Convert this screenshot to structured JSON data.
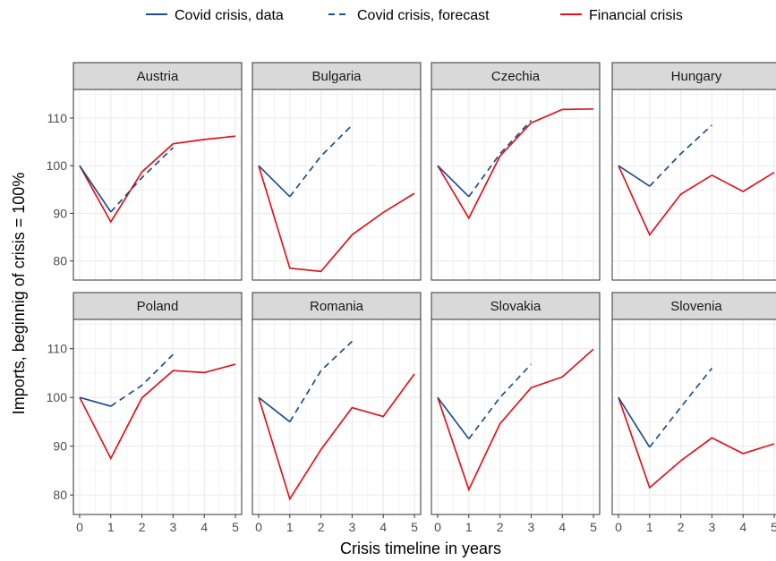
{
  "chart_data": {
    "type": "line",
    "facet_by": "country",
    "xlabel": "Crisis timeline in years",
    "ylabel": "Imports, beginnig of crisis = 100%",
    "x_ticks": [
      0,
      1,
      2,
      3,
      4,
      5
    ],
    "y_ticks": [
      80,
      90,
      100,
      110
    ],
    "xlim": [
      -0.2,
      5.2
    ],
    "ylim": [
      76,
      116
    ],
    "grid": true,
    "legend_position": "top",
    "legend": [
      {
        "label": "Covid crisis, data",
        "color": "#1f4e8c",
        "dash": "solid"
      },
      {
        "label": "Covid crisis, forecast",
        "color": "#1f4e8c",
        "dash": "dashed"
      },
      {
        "label": "Financial crisis",
        "color": "#e0141b",
        "dash": "solid"
      }
    ],
    "panels": [
      {
        "country": "Austria",
        "covid_data": {
          "x": [
            0,
            1
          ],
          "y": [
            100,
            90.3
          ]
        },
        "covid_forecast": {
          "x": [
            1,
            2,
            3
          ],
          "y": [
            90.3,
            97.5,
            103.8
          ]
        },
        "financial": {
          "x": [
            0,
            1,
            2,
            3,
            4,
            5
          ],
          "y": [
            100,
            88.2,
            98.7,
            104.6,
            105.5,
            106.2
          ]
        }
      },
      {
        "country": "Bulgaria",
        "covid_data": {
          "x": [
            0,
            1
          ],
          "y": [
            100,
            93.5
          ]
        },
        "covid_forecast": {
          "x": [
            1,
            2,
            3
          ],
          "y": [
            93.5,
            102.0,
            108.5
          ]
        },
        "financial": {
          "x": [
            0,
            1,
            2,
            3,
            4,
            5
          ],
          "y": [
            100,
            78.5,
            77.8,
            85.5,
            90.2,
            94.2
          ]
        }
      },
      {
        "country": "Czechia",
        "covid_data": {
          "x": [
            0,
            1
          ],
          "y": [
            100,
            93.5
          ]
        },
        "covid_forecast": {
          "x": [
            1,
            2,
            3
          ],
          "y": [
            93.5,
            102.5,
            109.5
          ]
        },
        "financial": {
          "x": [
            0,
            1,
            2,
            3,
            4,
            5
          ],
          "y": [
            100,
            89.0,
            102.0,
            109.0,
            111.8,
            111.9
          ]
        }
      },
      {
        "country": "Hungary",
        "covid_data": {
          "x": [
            0,
            1
          ],
          "y": [
            100,
            95.7
          ]
        },
        "covid_forecast": {
          "x": [
            1,
            2,
            3
          ],
          "y": [
            95.7,
            102.5,
            108.5
          ]
        },
        "financial": {
          "x": [
            0,
            1,
            2,
            3,
            4,
            5
          ],
          "y": [
            100,
            85.5,
            94.0,
            98.0,
            94.6,
            98.6
          ]
        }
      },
      {
        "country": "Poland",
        "covid_data": {
          "x": [
            0,
            1
          ],
          "y": [
            100,
            98.2
          ]
        },
        "covid_forecast": {
          "x": [
            1,
            2,
            3
          ],
          "y": [
            98.2,
            102.5,
            108.8
          ]
        },
        "financial": {
          "x": [
            0,
            1,
            2,
            3,
            4,
            5
          ],
          "y": [
            100,
            87.5,
            99.9,
            105.5,
            105.1,
            106.8
          ]
        }
      },
      {
        "country": "Romania",
        "covid_data": {
          "x": [
            0,
            1
          ],
          "y": [
            100,
            95.0
          ]
        },
        "covid_forecast": {
          "x": [
            1,
            2,
            3
          ],
          "y": [
            95.0,
            105.5,
            111.5
          ]
        },
        "financial": {
          "x": [
            0,
            1,
            2,
            3,
            4,
            5
          ],
          "y": [
            100,
            79.2,
            89.3,
            97.9,
            96.1,
            104.8
          ]
        }
      },
      {
        "country": "Slovakia",
        "covid_data": {
          "x": [
            0,
            1
          ],
          "y": [
            100,
            91.5
          ]
        },
        "covid_forecast": {
          "x": [
            1,
            2,
            3
          ],
          "y": [
            91.5,
            100.0,
            106.8
          ]
        },
        "financial": {
          "x": [
            0,
            1,
            2,
            3,
            4,
            5
          ],
          "y": [
            100,
            81.1,
            94.6,
            102.0,
            104.2,
            109.9
          ]
        }
      },
      {
        "country": "Slovenia",
        "covid_data": {
          "x": [
            0,
            1
          ],
          "y": [
            100,
            89.8
          ]
        },
        "covid_forecast": {
          "x": [
            1,
            2,
            3
          ],
          "y": [
            89.8,
            98.0,
            106.0
          ]
        },
        "financial": {
          "x": [
            0,
            1,
            2,
            3,
            4,
            5
          ],
          "y": [
            100,
            81.5,
            87.0,
            91.7,
            88.5,
            90.5
          ]
        }
      }
    ]
  }
}
